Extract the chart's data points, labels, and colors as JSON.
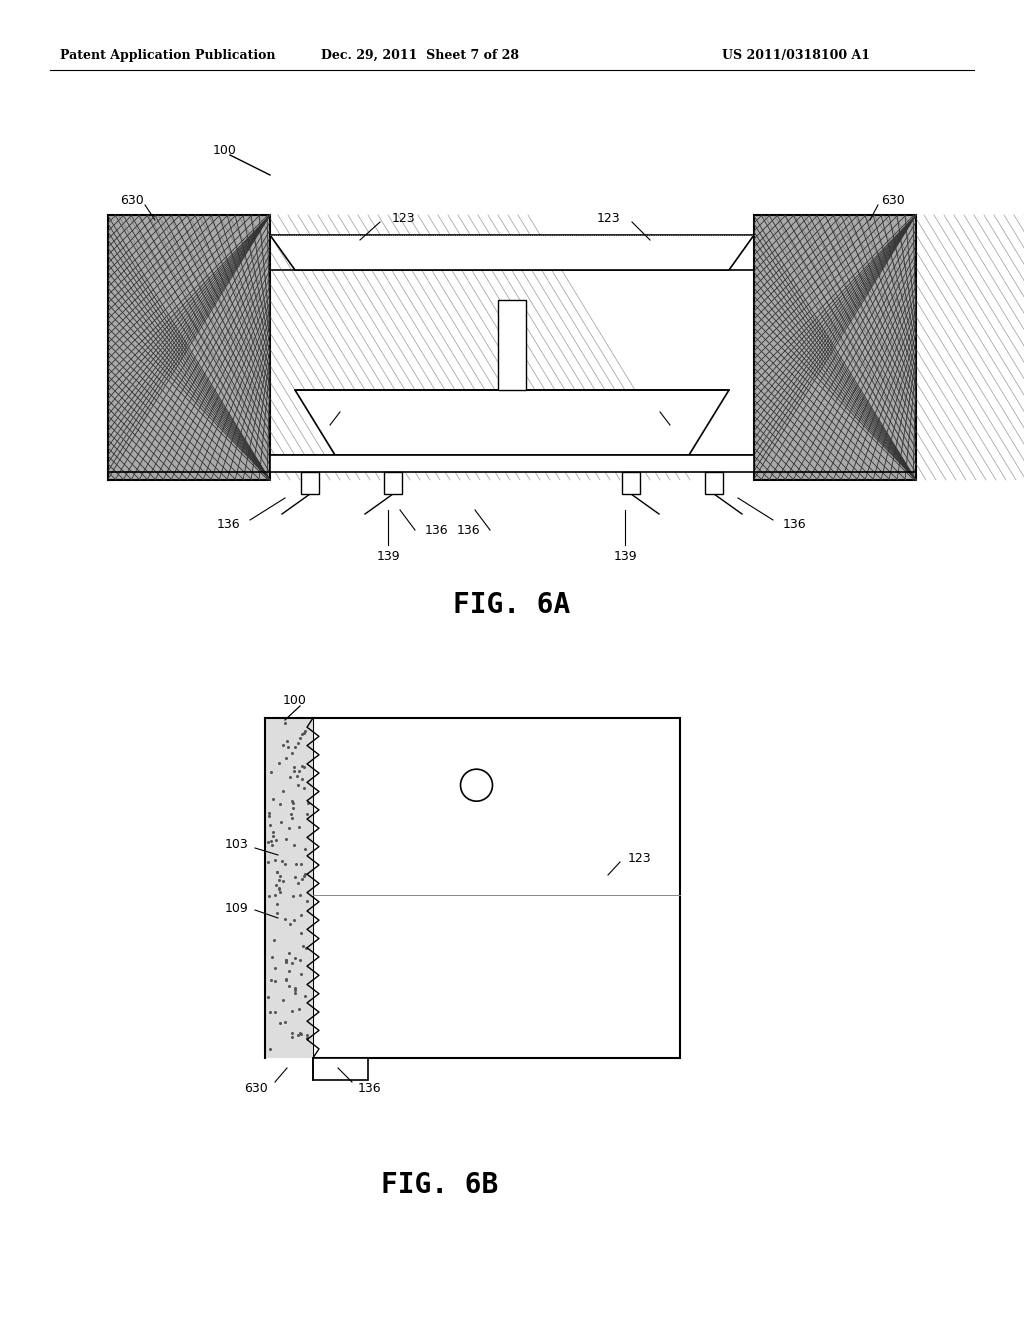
{
  "bg_color": "#ffffff",
  "header_left": "Patent Application Publication",
  "header_center": "Dec. 29, 2011  Sheet 7 of 28",
  "header_right": "US 2011/0318100 A1",
  "fig6a_title": "FIG. 6A",
  "fig6b_title": "FIG. 6B",
  "black": "#000000",
  "gray_hatch": "#999999",
  "light_gray": "#cccccc",
  "fs_header": 9,
  "fs_label": 9,
  "fs_title": 20
}
